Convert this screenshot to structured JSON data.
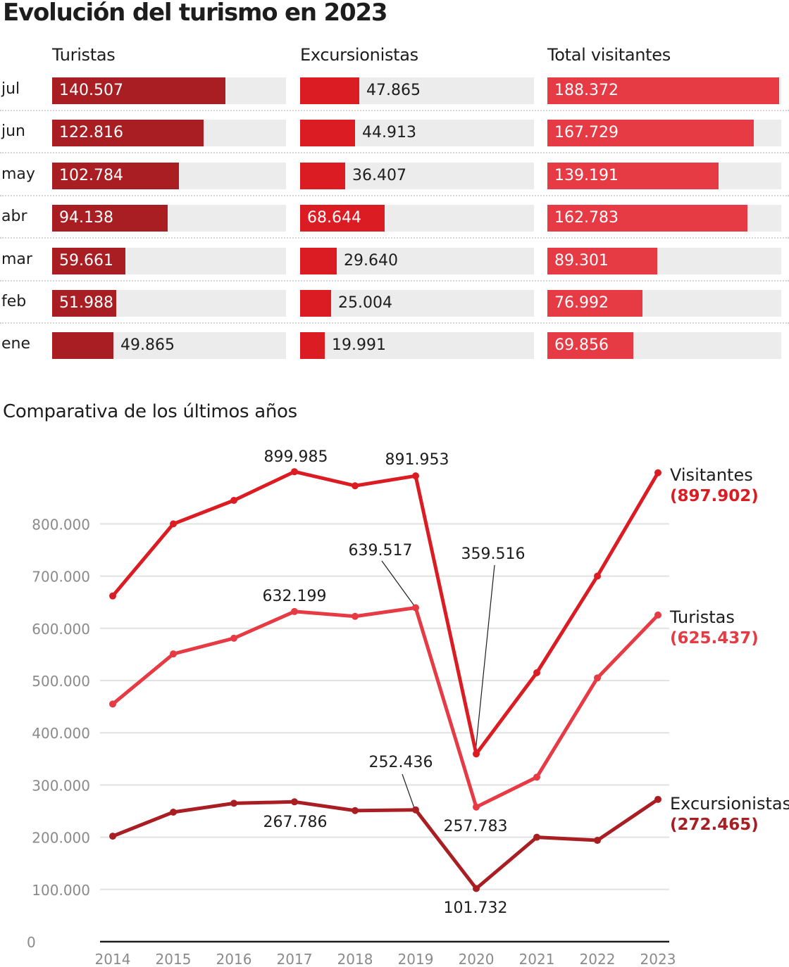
{
  "title": "Evolución del turismo en 2023",
  "bar_section": {
    "columns": [
      "Turistas",
      "Excursionistas",
      "Total visitantes"
    ],
    "months": [
      "jul",
      "jun",
      "may",
      "abr",
      "mar",
      "feb",
      "ene"
    ],
    "colors": [
      "#a91e22",
      "#dc1c23",
      "#e63a44"
    ],
    "track_color": "#ececec"
  },
  "subtitle": "Comparativa de los últimos años",
  "chart_data": [
    {
      "type": "bar",
      "orientation": "horizontal",
      "title": "Evolución del turismo en 2023",
      "categories": [
        "jul",
        "jun",
        "may",
        "abr",
        "mar",
        "feb",
        "ene"
      ],
      "series": [
        {
          "name": "Turistas",
          "values": [
            140507,
            122816,
            102784,
            94138,
            59661,
            51988,
            49865
          ],
          "labels": [
            "140.507",
            "122.816",
            "102.784",
            "94.138",
            "59.661",
            "51.988",
            "49.865"
          ]
        },
        {
          "name": "Excursionistas",
          "values": [
            47865,
            44913,
            36407,
            68644,
            29640,
            25004,
            19991
          ],
          "labels": [
            "47.865",
            "44.913",
            "36.407",
            "68.644",
            "29.640",
            "25.004",
            "19.991"
          ]
        },
        {
          "name": "Total visitantes",
          "values": [
            188372,
            167729,
            139191,
            162783,
            89301,
            76992,
            69856
          ],
          "labels": [
            "188.372",
            "167.729",
            "139.191",
            "162.783",
            "89.301",
            "76.992",
            "69.856"
          ]
        }
      ],
      "xlim": [
        0,
        190000
      ]
    },
    {
      "type": "line",
      "title": "Comparativa de los últimos años",
      "x": [
        2014,
        2015,
        2016,
        2017,
        2018,
        2019,
        2020,
        2021,
        2022,
        2023
      ],
      "x_tick_labels": [
        "2014",
        "2015",
        "2016",
        "2017",
        "2018",
        "2019",
        "2020",
        "2021",
        "2022",
        "2023"
      ],
      "ylim": [
        0,
        900000
      ],
      "y_ticks": [
        0,
        100000,
        200000,
        300000,
        400000,
        500000,
        600000,
        700000,
        800000
      ],
      "y_tick_labels": [
        "0",
        "100.000",
        "200.000",
        "300.000",
        "400.000",
        "500.000",
        "600.000",
        "700.000",
        "800.000"
      ],
      "grid": true,
      "legend": "end-of-line labels (right)",
      "series": [
        {
          "name": "Visitantes",
          "end_label": "(897.902)",
          "color": "#dc1c23",
          "values": [
            662000,
            800000,
            845000,
            899985,
            873000,
            891953,
            359516,
            515000,
            700000,
            897902
          ]
        },
        {
          "name": "Turistas",
          "end_label": "(625.437)",
          "color": "#e63a44",
          "values": [
            455000,
            551000,
            581000,
            632199,
            623000,
            639517,
            257783,
            315000,
            505000,
            625437
          ]
        },
        {
          "name": "Excursionistas",
          "end_label": "(272.465)",
          "color": "#a91e22",
          "values": [
            202000,
            248000,
            265000,
            267786,
            251000,
            252436,
            101732,
            200000,
            194000,
            272465
          ]
        }
      ],
      "annotations": [
        {
          "series": "Visitantes",
          "x": 2017,
          "text": "899.985"
        },
        {
          "series": "Visitantes",
          "x": 2019,
          "text": "891.953"
        },
        {
          "series": "Visitantes",
          "x": 2020,
          "text": "359.516",
          "leader": true
        },
        {
          "series": "Turistas",
          "x": 2017,
          "text": "632.199"
        },
        {
          "series": "Turistas",
          "x": 2019,
          "text": "639.517",
          "leader": true
        },
        {
          "series": "Turistas",
          "x": 2020,
          "text": "257.783"
        },
        {
          "series": "Excursionistas",
          "x": 2017,
          "text": "267.786"
        },
        {
          "series": "Excursionistas",
          "x": 2019,
          "text": "252.436",
          "leader": true
        },
        {
          "series": "Excursionistas",
          "x": 2020,
          "text": "101.732"
        }
      ]
    }
  ]
}
